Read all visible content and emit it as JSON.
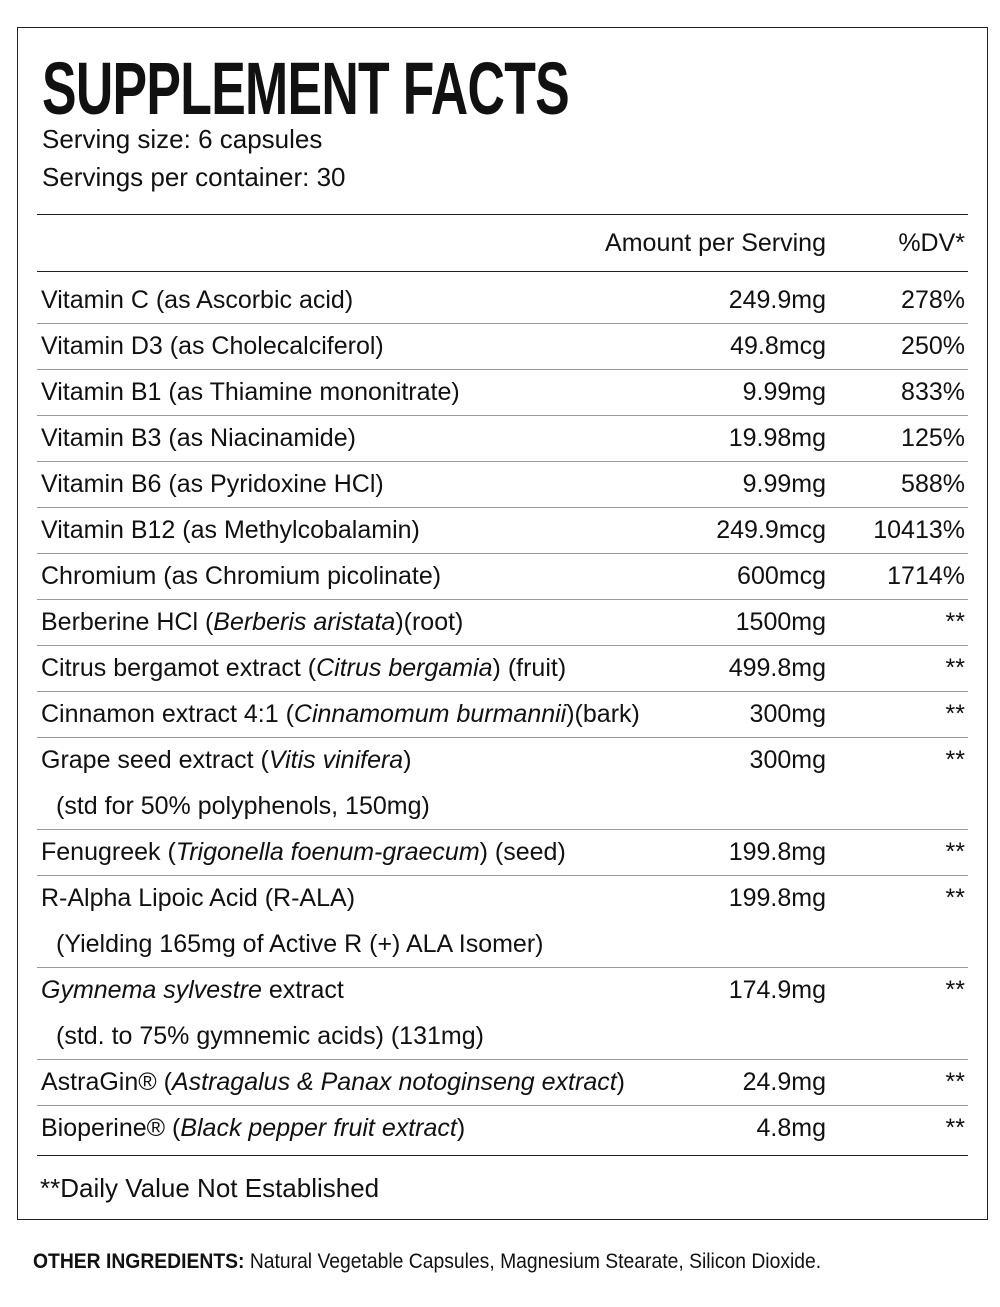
{
  "title": "SUPPLEMENT FACTS",
  "serving_size": "Serving size: 6 capsules",
  "servings_per_container": "Servings per container: 30",
  "table": {
    "header": {
      "amount": "Amount per Serving",
      "dv": "%DV*"
    },
    "rows": [
      {
        "name": [
          {
            "text": "Vitamin C (as Ascorbic acid)"
          }
        ],
        "amount": "249.9mg",
        "dv": "278%"
      },
      {
        "name": [
          {
            "text": "Vitamin D3 (as Cholecalciferol)"
          }
        ],
        "amount": "49.8mcg",
        "dv": "250%"
      },
      {
        "name": [
          {
            "text": "Vitamin B1 (as Thiamine mononitrate)"
          }
        ],
        "amount": "9.99mg",
        "dv": "833%"
      },
      {
        "name": [
          {
            "text": "Vitamin B3 (as Niacinamide)"
          }
        ],
        "amount": "19.98mg",
        "dv": "125%"
      },
      {
        "name": [
          {
            "text": "Vitamin B6 (as Pyridoxine HCl)"
          }
        ],
        "amount": "9.99mg",
        "dv": "588%"
      },
      {
        "name": [
          {
            "text": "Vitamin B12 (as Methylcobalamin)"
          }
        ],
        "amount": "249.9mcg",
        "dv": "10413%"
      },
      {
        "name": [
          {
            "text": "Chromium (as Chromium picolinate)"
          }
        ],
        "amount": "600mcg",
        "dv": "1714%"
      },
      {
        "name": [
          {
            "text": "Berberine HCl ("
          },
          {
            "text": "Berberis aristata",
            "italic": true
          },
          {
            "text": ")(root)"
          }
        ],
        "amount": "1500mg",
        "dv": "**"
      },
      {
        "name": [
          {
            "text": "Citrus bergamot extract ("
          },
          {
            "text": "Citrus bergamia",
            "italic": true
          },
          {
            "text": ") (fruit)"
          }
        ],
        "amount": "499.8mg",
        "dv": "**"
      },
      {
        "name": [
          {
            "text": "Cinnamon extract 4:1 ("
          },
          {
            "text": "Cinnamomum burmannii",
            "italic": true
          },
          {
            "text": ")(bark)"
          }
        ],
        "amount": "300mg",
        "dv": "**"
      },
      {
        "name": [
          {
            "text": "Grape seed extract ("
          },
          {
            "text": "Vitis vinifera",
            "italic": true
          },
          {
            "text": ")"
          }
        ],
        "sub": "(std for 50% polyphenols, 150mg)",
        "amount": "300mg",
        "dv": "**"
      },
      {
        "name": [
          {
            "text": "Fenugreek ("
          },
          {
            "text": "Trigonella foenum-graecum",
            "italic": true
          },
          {
            "text": ") (seed)"
          }
        ],
        "amount": "199.8mg",
        "dv": "**"
      },
      {
        "name": [
          {
            "text": "R-Alpha Lipoic Acid (R-ALA)"
          }
        ],
        "sub": "(Yielding 165mg of Active R (+) ALA Isomer)",
        "amount": "199.8mg",
        "dv": "**"
      },
      {
        "name": [
          {
            "text": "Gymnema sylvestre",
            "italic": true
          },
          {
            "text": " extract"
          }
        ],
        "sub": "(std. to 75% gymnemic acids) (131mg)",
        "amount": "174.9mg",
        "dv": "**"
      },
      {
        "name": [
          {
            "text": "AstraGin® ("
          },
          {
            "text": "Astragalus & Panax notoginseng extract",
            "italic": true
          },
          {
            "text": ")"
          }
        ],
        "amount": "24.9mg",
        "dv": "**"
      },
      {
        "name": [
          {
            "text": "Bioperine® ("
          },
          {
            "text": "Black pepper fruit extract",
            "italic": true
          },
          {
            "text": ")"
          }
        ],
        "amount": "4.8mg",
        "dv": "**"
      }
    ]
  },
  "footnote": "**Daily Value Not Established",
  "other_ingredients": {
    "label": "OTHER INGREDIENTS:",
    "text": " Natural Vegetable Capsules, Magnesium Stearate, Silicon Dioxide."
  }
}
